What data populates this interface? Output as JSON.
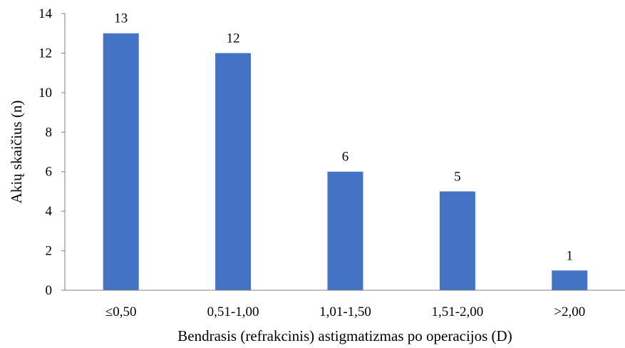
{
  "chart_data": {
    "type": "bar",
    "categories": [
      "≤0,50",
      "0,51-1,00",
      "1,01-1,50",
      "1,51-2,00",
      ">2,00"
    ],
    "values": [
      13,
      12,
      6,
      5,
      1
    ],
    "data_labels": [
      "13",
      "12",
      "6",
      "5",
      "1"
    ],
    "xlabel": "Bendrasis (refrakcinis) astigmatizmas po operacijos (D)",
    "ylabel": "Akių skaičius (n)",
    "ylim": [
      0,
      14
    ],
    "yticks": [
      "0",
      "2",
      "4",
      "6",
      "8",
      "10",
      "12",
      "14"
    ],
    "grid": false,
    "legend": "none",
    "bar_color": "#4472C4",
    "axis_color": "#808080"
  }
}
